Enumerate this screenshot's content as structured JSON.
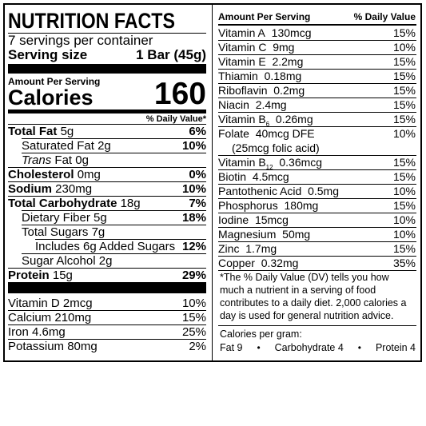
{
  "header": {
    "title": "NUTRITION FACTS",
    "servings": "7 servings per container",
    "serving_size_label": "Serving size",
    "serving_size": "1 Bar (45g)"
  },
  "calories": {
    "amount_label": "Amount Per Serving",
    "label": "Calories",
    "value": 160
  },
  "dv_header": "% Daily Value*",
  "left_nutrients": [
    {
      "name": "Total Fat",
      "amount": "5g",
      "dv": "6%"
    },
    {
      "name": "Saturated Fat",
      "amount": "2g",
      "dv": "10%"
    },
    {
      "name_italic": "Trans",
      "name": "Fat",
      "amount": "0g"
    },
    {
      "name": "Cholesterol",
      "amount": "0mg",
      "dv": "0%"
    },
    {
      "name": "Sodium",
      "amount": "230mg",
      "dv": "10%"
    },
    {
      "name": "Total Carbohydrate",
      "amount": "18g",
      "dv": "7%"
    },
    {
      "name": "Dietary Fiber",
      "amount": "5g",
      "dv": "18%"
    },
    {
      "name": "Total Sugars",
      "amount": "7g"
    },
    {
      "name": "Includes 6g Added Sugars",
      "dv": "12%"
    },
    {
      "name": "Sugar Alcohol",
      "amount": "2g"
    },
    {
      "name": "Protein",
      "amount": "15g",
      "dv": "29%"
    }
  ],
  "left_minerals": [
    {
      "name": "Vitamin D",
      "amount": "2mcg",
      "dv": "10%"
    },
    {
      "name": "Calcium",
      "amount": "210mg",
      "dv": "15%"
    },
    {
      "name": "Iron",
      "amount": "4.6mg",
      "dv": "25%"
    },
    {
      "name": "Potassium",
      "amount": "80mg",
      "dv": "2%"
    }
  ],
  "right_header": {
    "amount_label": "Amount Per Serving",
    "dv_label": "% Daily Value"
  },
  "right_nutrients": [
    {
      "name": "Vitamin A",
      "amount": "130mcg",
      "dv": "15%"
    },
    {
      "name": "Vitamin C",
      "amount": "9mg",
      "dv": "10%"
    },
    {
      "name": "Vitamin E",
      "amount": "2.2mg",
      "dv": "15%"
    },
    {
      "name": "Thiamin",
      "amount": "0.18mg",
      "dv": "15%"
    },
    {
      "name": "Riboflavin",
      "amount": "0.2mg",
      "dv": "15%"
    },
    {
      "name": "Niacin",
      "amount": "2.4mg",
      "dv": "15%"
    },
    {
      "name": "Vitamin B",
      "sub": "6",
      "amount": "0.26mg",
      "dv": "15%"
    },
    {
      "name": "Folate",
      "amount": "40mcg DFE",
      "note": "(25mcg folic acid)",
      "dv": "10%"
    },
    {
      "name": "Vitamin B",
      "sub": "12",
      "amount": "0.36mcg",
      "dv": "15%"
    },
    {
      "name": "Biotin",
      "amount": "4.5mcg",
      "dv": "15%"
    },
    {
      "name": "Pantothenic Acid",
      "amount": "0.5mg",
      "dv": "10%"
    },
    {
      "name": "Phosphorus",
      "amount": "180mg",
      "dv": "15%"
    },
    {
      "name": "Iodine",
      "amount": "15mcg",
      "dv": "10%"
    },
    {
      "name": "Magnesium",
      "amount": "50mg",
      "dv": "10%"
    },
    {
      "name": "Zinc",
      "amount": "1.7mg",
      "dv": "15%"
    },
    {
      "name": "Copper",
      "amount": "0.32mg",
      "dv": "35%"
    }
  ],
  "footnote": [
    "*The % Daily Value (DV) tells you how",
    "much a nutrient in a serving of food",
    "contributes to a daily diet. 2,000 calories a",
    "day is used for general nutrition advice."
  ],
  "calories_per_gram": {
    "label": "Calories per gram:",
    "items": [
      "Fat 9",
      "Carbohydrate 4",
      "Protein 4"
    ]
  }
}
